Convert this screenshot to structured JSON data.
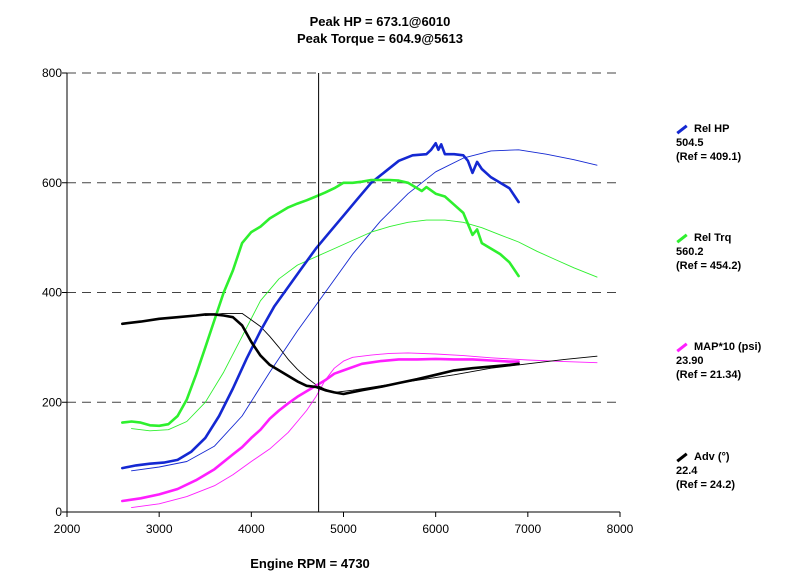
{
  "header": {
    "peak_hp": "Peak HP = 673.1@6010",
    "peak_torque": "Peak Torque = 604.9@5613"
  },
  "cursor_label": "Engine RPM = 4730",
  "legend": [
    {
      "name": "Rel HP",
      "value": "504.5",
      "ref": "(Ref = 409.1)",
      "color": "#1428d2"
    },
    {
      "name": "Rel Trq",
      "value": "560.2",
      "ref": "(Ref = 454.2)",
      "color": "#2ef02e"
    },
    {
      "name": "MAP*10 (psi)",
      "value": "23.90",
      "ref": "(Ref = 21.34)",
      "color": "#ff1eff"
    },
    {
      "name": "Adv (°)",
      "value": "22.4",
      "ref": "(Ref = 24.2)",
      "color": "#000000"
    }
  ],
  "chart_data": {
    "type": "line",
    "title": "Peak HP = 673.1@6010 / Peak Torque = 604.9@5613",
    "xlabel": "Engine RPM",
    "ylabel": "",
    "xlim": [
      2000,
      8000
    ],
    "ylim": [
      0,
      800
    ],
    "xticks": [
      2000,
      3000,
      4000,
      5000,
      6000,
      7000,
      8000
    ],
    "yticks": [
      0,
      200,
      400,
      600,
      800
    ],
    "cursor_rpm": 4730,
    "series": [
      {
        "name": "Rel HP",
        "color": "#1428d2",
        "width": 2.6,
        "x": [
          2600,
          2750,
          2900,
          3050,
          3200,
          3350,
          3500,
          3650,
          3800,
          3950,
          4100,
          4250,
          4400,
          4550,
          4700,
          4850,
          5000,
          5150,
          5300,
          5450,
          5600,
          5750,
          5900,
          5950,
          6000,
          6030,
          6060,
          6100,
          6200,
          6300,
          6350,
          6400,
          6450,
          6500,
          6600,
          6700,
          6800,
          6900
        ],
        "y": [
          80,
          85,
          88,
          90,
          95,
          110,
          135,
          175,
          225,
          280,
          330,
          375,
          410,
          445,
          480,
          510,
          540,
          570,
          600,
          620,
          640,
          650,
          652,
          660,
          672,
          660,
          670,
          652,
          652,
          650,
          640,
          618,
          638,
          625,
          610,
          600,
          590,
          565
        ]
      },
      {
        "name": "Rel Trq",
        "color": "#2ef02e",
        "width": 2.6,
        "x": [
          2600,
          2700,
          2800,
          2900,
          3000,
          3100,
          3200,
          3300,
          3400,
          3500,
          3600,
          3700,
          3800,
          3900,
          4000,
          4100,
          4200,
          4300,
          4400,
          4500,
          4600,
          4700,
          4800,
          4900,
          5000,
          5100,
          5200,
          5300,
          5400,
          5500,
          5600,
          5700,
          5800,
          5850,
          5900,
          6000,
          6100,
          6200,
          6300,
          6350,
          6400,
          6450,
          6500,
          6600,
          6700,
          6800,
          6900
        ],
        "y": [
          163,
          165,
          163,
          158,
          157,
          160,
          175,
          205,
          250,
          300,
          350,
          400,
          440,
          490,
          510,
          520,
          535,
          545,
          555,
          562,
          568,
          575,
          582,
          590,
          600,
          600,
          602,
          605,
          605,
          605,
          604,
          600,
          590,
          585,
          592,
          580,
          575,
          560,
          545,
          525,
          505,
          515,
          490,
          480,
          470,
          455,
          430
        ]
      },
      {
        "name": "MAP*10 (psi)",
        "color": "#ff1eff",
        "width": 2.6,
        "x": [
          2600,
          2800,
          3000,
          3200,
          3400,
          3600,
          3800,
          3900,
          4000,
          4100,
          4200,
          4300,
          4400,
          4500,
          4600,
          4700,
          4800,
          4900,
          5000,
          5200,
          5400,
          5600,
          5800,
          6000,
          6200,
          6400,
          6600,
          6800,
          6900
        ],
        "y": [
          20,
          25,
          32,
          42,
          58,
          78,
          105,
          118,
          135,
          150,
          170,
          185,
          198,
          210,
          220,
          230,
          240,
          252,
          258,
          270,
          275,
          278,
          278,
          279,
          278,
          278,
          276,
          274,
          274
        ]
      },
      {
        "name": "Adv (°)",
        "color": "#000000",
        "width": 2.6,
        "x": [
          2600,
          2800,
          3000,
          3200,
          3400,
          3500,
          3600,
          3700,
          3800,
          3900,
          4000,
          4100,
          4200,
          4300,
          4400,
          4500,
          4600,
          4700,
          4800,
          4900,
          5000,
          5200,
          5400,
          5600,
          5800,
          6000,
          6200,
          6400,
          6600,
          6800,
          6900
        ],
        "y": [
          343,
          347,
          352,
          355,
          358,
          360,
          360,
          358,
          355,
          340,
          310,
          285,
          268,
          258,
          248,
          238,
          230,
          228,
          222,
          218,
          215,
          222,
          228,
          235,
          242,
          250,
          258,
          262,
          265,
          268,
          270
        ]
      },
      {
        "name": "Ref HP",
        "color": "#1428d2",
        "width": 0.9,
        "x": [
          2700,
          3000,
          3300,
          3600,
          3900,
          4200,
          4500,
          4800,
          5100,
          5400,
          5700,
          6000,
          6300,
          6600,
          6900,
          7200,
          7500,
          7750
        ],
        "y": [
          75,
          82,
          92,
          120,
          175,
          255,
          330,
          400,
          470,
          530,
          580,
          620,
          645,
          658,
          660,
          652,
          642,
          632
        ]
      },
      {
        "name": "Ref Trq",
        "color": "#2ef02e",
        "width": 0.9,
        "x": [
          2700,
          2900,
          3100,
          3300,
          3500,
          3700,
          3900,
          4100,
          4300,
          4500,
          4700,
          4900,
          5100,
          5300,
          5500,
          5700,
          5900,
          6100,
          6300,
          6500,
          6700,
          6900,
          7100,
          7300,
          7500,
          7750
        ],
        "y": [
          152,
          148,
          150,
          165,
          200,
          255,
          320,
          385,
          425,
          450,
          465,
          480,
          495,
          510,
          520,
          528,
          532,
          532,
          528,
          518,
          505,
          492,
          475,
          460,
          445,
          428
        ]
      },
      {
        "name": "Ref MAP*10 (psi)",
        "color": "#ff1eff",
        "width": 0.9,
        "x": [
          2700,
          3000,
          3300,
          3600,
          3800,
          4000,
          4200,
          4400,
          4500,
          4600,
          4700,
          4800,
          4900,
          5000,
          5100,
          5300,
          5500,
          5700,
          6000,
          6300,
          6600,
          7000,
          7400,
          7750
        ],
        "y": [
          8,
          15,
          28,
          48,
          68,
          92,
          115,
          145,
          165,
          185,
          210,
          240,
          262,
          275,
          282,
          286,
          289,
          290,
          288,
          285,
          281,
          277,
          274,
          272
        ]
      },
      {
        "name": "Ref Adv (°)",
        "color": "#000000",
        "width": 0.9,
        "x": [
          3500,
          3700,
          3900,
          4000,
          4100,
          4200,
          4300,
          4400,
          4500,
          4600,
          4700,
          4800,
          4900,
          5100,
          5400,
          5800,
          6200,
          6600,
          7000,
          7400,
          7750
        ],
        "y": [
          358,
          362,
          362,
          350,
          338,
          320,
          300,
          278,
          260,
          245,
          232,
          224,
          218,
          222,
          230,
          240,
          250,
          262,
          270,
          278,
          284
        ]
      }
    ]
  }
}
